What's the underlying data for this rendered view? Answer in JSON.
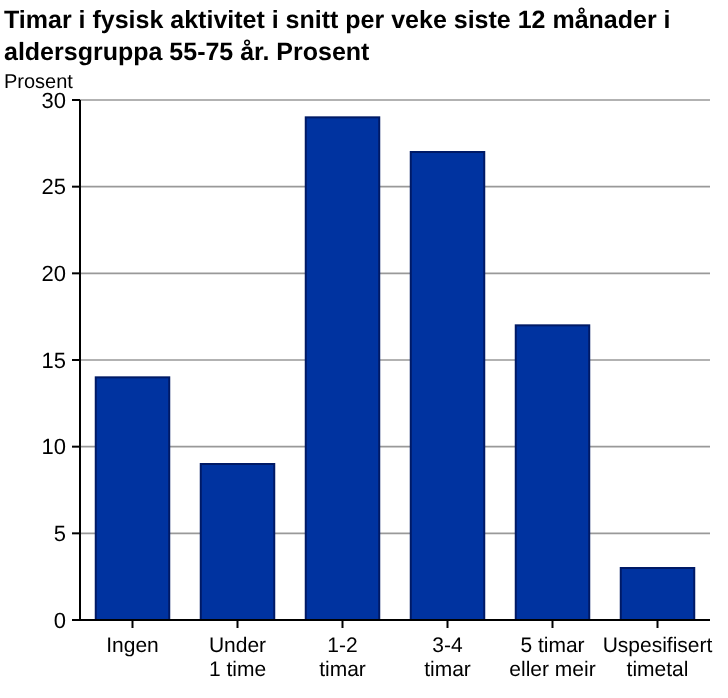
{
  "chart_data": {
    "type": "bar",
    "title": "Timar i fysisk aktivitet i snitt per veke siste 12 månader i aldersgruppa 55-75 år. Prosent",
    "ylabel": "Prosent",
    "categories": [
      "Ingen",
      "Under\n1 time",
      "1-2\ntimar",
      "3-4\ntimar",
      "5 timar\neller meir",
      "Uspesifisert\ntimetal"
    ],
    "values": [
      14,
      9,
      29,
      27,
      17,
      3
    ],
    "color": "#0033a0",
    "ylim": [
      0,
      30
    ],
    "yticks": [
      0,
      5,
      10,
      15,
      20,
      25,
      30
    ],
    "grid": "y"
  }
}
